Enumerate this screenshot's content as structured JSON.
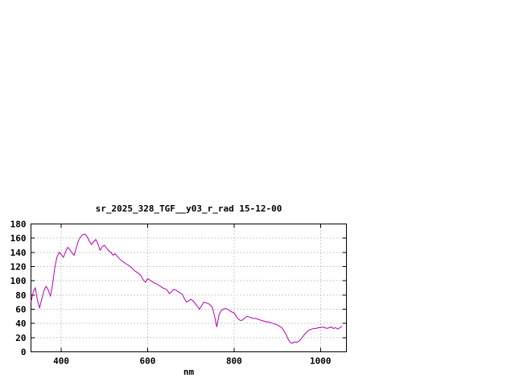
{
  "page": {
    "background": "#ffffff"
  },
  "chart_data": {
    "type": "line",
    "title": "sr_2025_328_TGF__y03_r_rad 15-12-00",
    "xlabel": "nm",
    "ylabel": "",
    "xlim": [
      330,
      1060
    ],
    "ylim": [
      0,
      180
    ],
    "xticks": [
      400,
      600,
      800,
      1000
    ],
    "yticks": [
      0,
      20,
      40,
      60,
      80,
      100,
      120,
      140,
      160,
      180
    ],
    "grid": true,
    "legend_position": "none",
    "line_color": "#b400b4",
    "axis_color": "#000000",
    "grid_color": "#9a9a9a",
    "series": [
      {
        "name": "sr_2025_328_TGF__y03_r_rad",
        "x": [
          330,
          335,
          340,
          345,
          350,
          355,
          360,
          365,
          370,
          375,
          380,
          385,
          390,
          395,
          400,
          405,
          410,
          415,
          420,
          425,
          430,
          435,
          440,
          445,
          450,
          455,
          460,
          465,
          470,
          475,
          480,
          485,
          490,
          495,
          500,
          505,
          510,
          515,
          520,
          525,
          530,
          535,
          540,
          545,
          550,
          555,
          560,
          565,
          570,
          575,
          580,
          585,
          590,
          595,
          600,
          605,
          610,
          615,
          620,
          625,
          630,
          635,
          640,
          645,
          650,
          655,
          660,
          665,
          670,
          675,
          680,
          685,
          690,
          695,
          700,
          705,
          710,
          715,
          720,
          725,
          730,
          735,
          740,
          745,
          750,
          755,
          760,
          765,
          770,
          775,
          780,
          785,
          790,
          795,
          800,
          805,
          810,
          815,
          820,
          825,
          830,
          835,
          840,
          845,
          850,
          855,
          860,
          865,
          870,
          875,
          880,
          885,
          890,
          895,
          900,
          905,
          910,
          915,
          920,
          925,
          930,
          935,
          940,
          945,
          950,
          955,
          960,
          965,
          970,
          975,
          980,
          985,
          990,
          995,
          1000,
          1005,
          1010,
          1015,
          1020,
          1025,
          1030,
          1035,
          1040,
          1045,
          1050
        ],
        "y": [
          70,
          84,
          90,
          72,
          62,
          74,
          86,
          92,
          87,
          78,
          95,
          118,
          133,
          140,
          137,
          133,
          141,
          147,
          144,
          139,
          136,
          147,
          157,
          162,
          165,
          166,
          162,
          156,
          151,
          155,
          158,
          152,
          143,
          148,
          150,
          146,
          142,
          140,
          136,
          138,
          134,
          131,
          128,
          126,
          124,
          122,
          120,
          117,
          114,
          112,
          110,
          107,
          101,
          98,
          103,
          101,
          99,
          97,
          96,
          94,
          92,
          90,
          89,
          87,
          82,
          84,
          88,
          87,
          85,
          83,
          81,
          75,
          70,
          72,
          74,
          72,
          68,
          64,
          60,
          65,
          70,
          69,
          68,
          66,
          62,
          50,
          35,
          52,
          58,
          60,
          61,
          60,
          58,
          56,
          55,
          50,
          46,
          44,
          45,
          48,
          50,
          49,
          48,
          47,
          47,
          46,
          45,
          44,
          43,
          42,
          42,
          41,
          40,
          39,
          38,
          36,
          34,
          30,
          25,
          18,
          13,
          12,
          14,
          13,
          15,
          18,
          22,
          26,
          29,
          31,
          32,
          33,
          33,
          34,
          34,
          35,
          34,
          33,
          34,
          35,
          33,
          34,
          32,
          34,
          36
        ]
      }
    ]
  }
}
